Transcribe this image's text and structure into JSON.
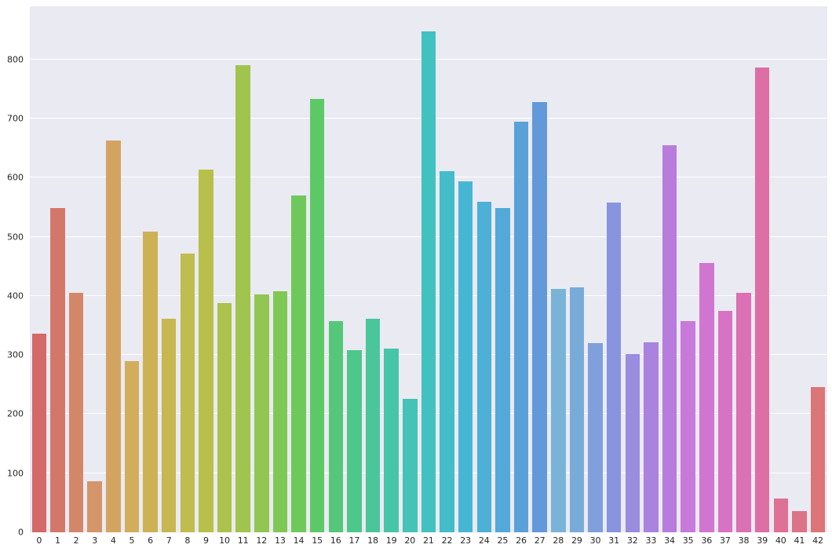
{
  "chart_data": {
    "type": "bar",
    "title": "",
    "xlabel": "",
    "ylabel": "",
    "grid": true,
    "legend": false,
    "plot_bg": "#eaeaf2",
    "figure_bg": "#ffffff",
    "grid_color": "#ffffff",
    "tick_color": "#262626",
    "ylim": [
      0,
      890
    ],
    "yticks": [
      0,
      100,
      200,
      300,
      400,
      500,
      600,
      700,
      800
    ],
    "categories": [
      "0",
      "1",
      "2",
      "3",
      "4",
      "5",
      "6",
      "7",
      "8",
      "9",
      "10",
      "11",
      "12",
      "13",
      "14",
      "15",
      "16",
      "17",
      "18",
      "19",
      "20",
      "21",
      "22",
      "23",
      "24",
      "25",
      "26",
      "27",
      "28",
      "29",
      "30",
      "31",
      "32",
      "33",
      "34",
      "35",
      "36",
      "37",
      "38",
      "39",
      "40",
      "41",
      "42"
    ],
    "values": [
      336,
      549,
      405,
      86,
      663,
      290,
      509,
      361,
      472,
      614,
      388,
      791,
      402,
      408,
      570,
      733,
      357,
      308,
      361,
      311,
      226,
      848,
      611,
      594,
      559,
      549,
      695,
      728,
      412,
      414,
      320,
      558,
      301,
      322,
      655,
      357,
      455,
      375,
      405,
      786,
      57,
      36,
      246
    ],
    "palette": [
      "#d36969",
      "#d37869",
      "#d38769",
      "#d39569",
      "#d3a460",
      "#d2ad5b",
      "#ccb254",
      "#c6b750",
      "#c0bc4d",
      "#b8bf4a",
      "#adc24c",
      "#a0c44e",
      "#90c651",
      "#80c855",
      "#6fc95a",
      "#5dc966",
      "#54c878",
      "#4ec78a",
      "#4ac69a",
      "#47c5a9",
      "#44c3b6",
      "#42c1c1",
      "#44bcca",
      "#47b6d2",
      "#4cb0d7",
      "#53a9d9",
      "#5ba1d9",
      "#6399d8",
      "#79b4d8",
      "#79abd8",
      "#7f9fdd",
      "#8894de",
      "#9a8cde",
      "#a983de",
      "#b87cdd",
      "#c77ad9",
      "#d076d0",
      "#d772c4",
      "#dc70b5",
      "#de6fa5",
      "#de7195",
      "#dd7386",
      "#db7577"
    ]
  }
}
